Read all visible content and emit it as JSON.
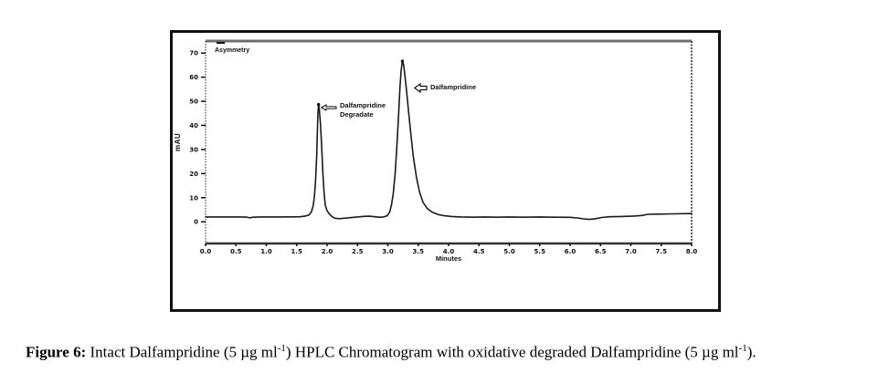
{
  "figure": {
    "caption": {
      "label": "Figure 6:",
      "seg1": " Intact Dalfampridine (5 µg ml",
      "sup1": "-1",
      "seg2": ") HPLC Chromatogram with oxidative degraded Dalfampridine (5 µg ml",
      "sup2": "-1",
      "seg3": ")."
    }
  },
  "colors": {
    "ink": "#1a1a1a",
    "frame_gray": "#6e6e6e",
    "background": "#ffffff"
  },
  "chart_data": {
    "type": "line",
    "title": "",
    "xlabel": "Minutes",
    "ylabel": "mAU",
    "xlim": [
      0,
      8
    ],
    "ylim": [
      -9,
      75
    ],
    "grid": false,
    "x_ticks": [
      "0.0",
      "0.5",
      "1.0",
      "1.5",
      "2.0",
      "2.5",
      "3.0",
      "3.5",
      "4.0",
      "4.5",
      "5.0",
      "5.5",
      "6.0",
      "6.5",
      "7.0",
      "7.5",
      "8.0"
    ],
    "y_ticks": [
      0,
      10,
      20,
      30,
      40,
      50,
      60,
      70
    ],
    "legend": {
      "label": "Asymmetry",
      "position": "top-left",
      "marker": "dash"
    },
    "annotations": [
      {
        "line1": "Dalfampridine",
        "line2": "Degradate",
        "arrow": "left-open-arrow",
        "peak_time_min": 1.86,
        "peak_height_mAU": 49
      },
      {
        "line1": "Dalfampridine",
        "line2": "",
        "arrow": "left-open-arrow",
        "peak_time_min": 3.24,
        "peak_height_mAU": 67
      }
    ],
    "trace": {
      "name": "oxidative degraded Dalfampridine chromatogram",
      "points": [
        [
          0.0,
          2.0
        ],
        [
          0.3,
          2.0
        ],
        [
          0.55,
          2.0
        ],
        [
          0.68,
          1.95
        ],
        [
          0.73,
          1.65
        ],
        [
          0.78,
          1.9
        ],
        [
          0.9,
          2.0
        ],
        [
          1.2,
          2.0
        ],
        [
          1.45,
          2.05
        ],
        [
          1.55,
          2.1
        ],
        [
          1.63,
          2.3
        ],
        [
          1.7,
          2.8
        ],
        [
          1.74,
          4.0
        ],
        [
          1.77,
          6.5
        ],
        [
          1.79,
          10
        ],
        [
          1.81,
          17
        ],
        [
          1.83,
          28
        ],
        [
          1.84,
          38
        ],
        [
          1.85,
          45
        ],
        [
          1.86,
          49
        ],
        [
          1.87,
          47
        ],
        [
          1.89,
          41
        ],
        [
          1.91,
          32
        ],
        [
          1.93,
          21
        ],
        [
          1.95,
          12
        ],
        [
          1.97,
          7
        ],
        [
          2.0,
          4.5
        ],
        [
          2.04,
          3.2
        ],
        [
          2.08,
          2.2
        ],
        [
          2.13,
          1.5
        ],
        [
          2.2,
          1.3
        ],
        [
          2.28,
          1.5
        ],
        [
          2.38,
          1.7
        ],
        [
          2.5,
          2.0
        ],
        [
          2.6,
          2.25
        ],
        [
          2.7,
          2.3
        ],
        [
          2.78,
          2.1
        ],
        [
          2.86,
          1.9
        ],
        [
          2.93,
          2.0
        ],
        [
          2.99,
          2.5
        ],
        [
          3.03,
          4.0
        ],
        [
          3.06,
          7
        ],
        [
          3.09,
          12
        ],
        [
          3.12,
          20
        ],
        [
          3.15,
          32
        ],
        [
          3.18,
          46
        ],
        [
          3.2,
          56
        ],
        [
          3.22,
          63
        ],
        [
          3.24,
          67
        ],
        [
          3.26,
          65
        ],
        [
          3.28,
          61
        ],
        [
          3.31,
          54
        ],
        [
          3.34,
          46
        ],
        [
          3.38,
          36
        ],
        [
          3.42,
          27
        ],
        [
          3.47,
          18.5
        ],
        [
          3.52,
          12.5
        ],
        [
          3.58,
          8
        ],
        [
          3.65,
          5.5
        ],
        [
          3.73,
          4.0
        ],
        [
          3.83,
          3.0
        ],
        [
          3.93,
          2.5
        ],
        [
          4.05,
          2.2
        ],
        [
          4.2,
          2.0
        ],
        [
          4.4,
          1.9
        ],
        [
          4.6,
          2.0
        ],
        [
          4.8,
          1.9
        ],
        [
          5.0,
          2.0
        ],
        [
          5.25,
          1.9
        ],
        [
          5.5,
          2.0
        ],
        [
          5.75,
          1.9
        ],
        [
          6.0,
          1.85
        ],
        [
          6.12,
          1.6
        ],
        [
          6.22,
          1.2
        ],
        [
          6.32,
          1.0
        ],
        [
          6.42,
          1.3
        ],
        [
          6.52,
          1.8
        ],
        [
          6.65,
          2.1
        ],
        [
          6.85,
          2.2
        ],
        [
          7.05,
          2.4
        ],
        [
          7.18,
          2.6
        ],
        [
          7.28,
          3.1
        ],
        [
          7.45,
          3.2
        ],
        [
          7.7,
          3.3
        ],
        [
          8.0,
          3.4
        ]
      ]
    }
  }
}
